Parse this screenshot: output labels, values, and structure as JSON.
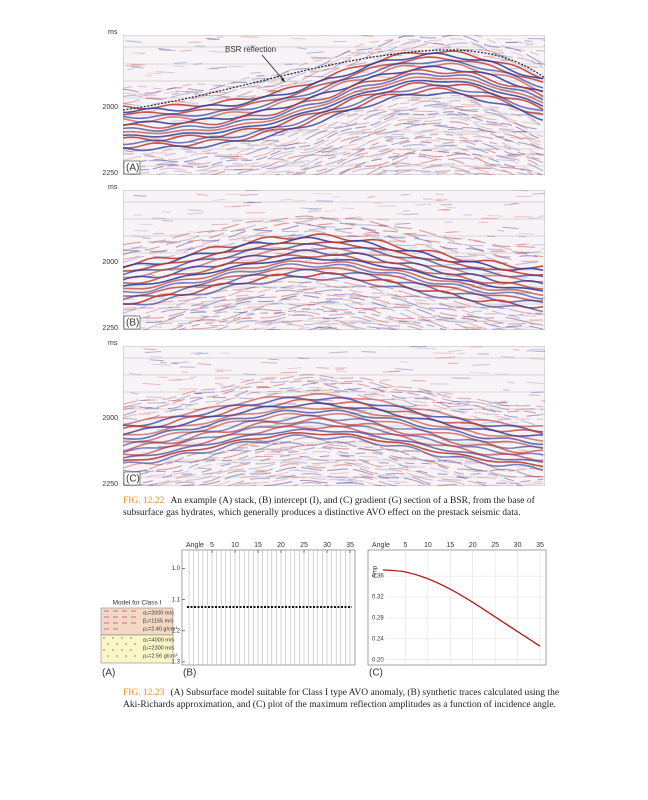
{
  "fig_12_22": {
    "panels": [
      {
        "label": "(A)",
        "unit": "ms",
        "yticks": [
          "2000",
          "2250"
        ],
        "annotation": "BSR reflection"
      },
      {
        "label": "(B)",
        "unit": "ms",
        "yticks": [
          "2000",
          "2250"
        ]
      },
      {
        "label": "(C)",
        "unit": "ms",
        "yticks": [
          "2000",
          "2250"
        ]
      }
    ],
    "caption": {
      "number": "FIG. 12.22",
      "text": "An example (A) stack, (B) intercept (I), and (C) gradient (G) section of a BSR, from the base of subsurface gas hydrates, which generally produces a distinctive AVO effect on the prestack seismic data."
    }
  },
  "fig_12_23": {
    "model": {
      "label": "(A)",
      "title": "Model for Class I",
      "layer1": [
        "α₁=2000 m/s",
        "β₁=1155 m/s",
        "ρ₁=2.40 g/cm³"
      ],
      "layer2": [
        "α₂=4000 m/s",
        "β₂=2300 m/s",
        "ρ₂=2.56 g/cm³"
      ]
    },
    "panel_b": {
      "label": "(B)",
      "x_label": "Angle",
      "xlim": [
        0,
        35
      ],
      "xticks": [
        5,
        10,
        15,
        20,
        25,
        30,
        35
      ],
      "ylim": [
        0.94,
        1.31
      ],
      "yticks": [
        {
          "value": 1.0,
          "label": "1.0"
        },
        1.1,
        1.2,
        1.3
      ]
    },
    "panel_c": {
      "type": "line",
      "label": "(C)",
      "x_label": "Angle",
      "y_label": "Amp",
      "xlim": [
        0,
        35
      ],
      "xticks": [
        5,
        10,
        15,
        20,
        25,
        30,
        35
      ],
      "ylim": [
        0.19,
        0.41
      ],
      "yticks": [
        0.36,
        0.32,
        0.28,
        0.24,
        {
          "value": 0.2,
          "label": "0.20"
        }
      ],
      "x": [
        0,
        5,
        10,
        15,
        20,
        25,
        30,
        35
      ],
      "values": [
        0.372,
        0.368,
        0.355,
        0.335,
        0.31,
        0.282,
        0.254,
        0.226
      ],
      "color": "#b01c1c"
    },
    "caption": {
      "number": "FIG. 12.23",
      "text": "(A) Subsurface model suitable for Class I type AVO anomaly, (B) synthetic traces calculated using the Aki-Richards approximation, and (C) plot of the maximum reflection amplitudes as a function of incidence angle."
    }
  }
}
